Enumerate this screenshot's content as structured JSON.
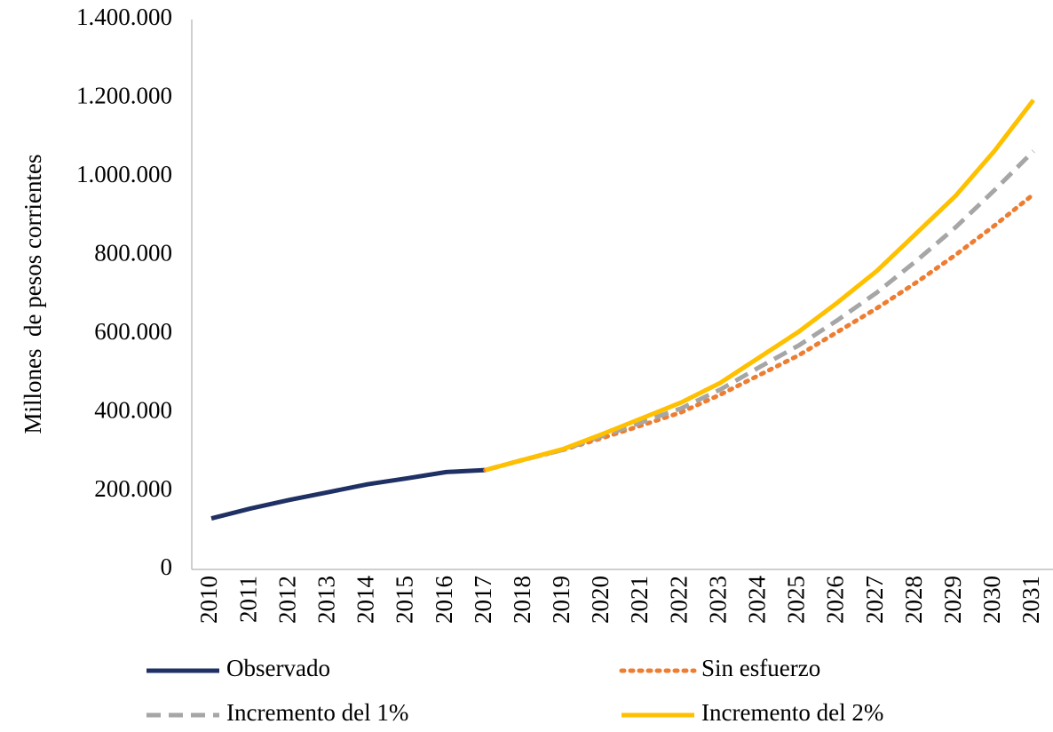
{
  "chart_data": {
    "type": "line",
    "y_axis_label": "Millones  de pesos corrientes",
    "categories": [
      "2010",
      "2011",
      "2012",
      "2013",
      "2014",
      "2015",
      "2016",
      "2017",
      "2018",
      "2019",
      "2020",
      "2021",
      "2022",
      "2023",
      "2024",
      "2025",
      "2026",
      "2027",
      "2028",
      "2029",
      "2030",
      "2031"
    ],
    "series": [
      {
        "name": "Observado",
        "color": "#1f3064",
        "line_style": "solid",
        "values": [
          130000,
          155000,
          177000,
          197000,
          217000,
          232000,
          248000,
          253000,
          null,
          null,
          null,
          null,
          null,
          null,
          null,
          null,
          null,
          null,
          null,
          null,
          null,
          null
        ]
      },
      {
        "name": "Sin esfuerzo",
        "color": "#ed7d31",
        "line_style": "dotted",
        "values": [
          null,
          null,
          null,
          null,
          null,
          null,
          null,
          253000,
          280000,
          305000,
          335000,
          367000,
          400000,
          445000,
          495000,
          545000,
          605000,
          665000,
          730000,
          800000,
          875000,
          955000
        ]
      },
      {
        "name": "Incremento del 1%",
        "color": "#a6a6a6",
        "line_style": "dashed",
        "values": [
          null,
          null,
          null,
          null,
          null,
          null,
          null,
          253000,
          280000,
          305000,
          340000,
          375000,
          410000,
          458000,
          515000,
          570000,
          635000,
          705000,
          785000,
          870000,
          965000,
          1065000
        ]
      },
      {
        "name": "Incremento del 2%",
        "color": "#ffc000",
        "line_style": "solid",
        "values": [
          null,
          null,
          null,
          null,
          null,
          null,
          null,
          253000,
          280000,
          307000,
          345000,
          385000,
          425000,
          475000,
          540000,
          605000,
          680000,
          760000,
          855000,
          950000,
          1065000,
          1195000
        ]
      }
    ],
    "ylim": [
      0,
      1400000
    ],
    "yticks": [
      0,
      {
        "value": 200000,
        "label": "200.000"
      },
      {
        "value": 400000,
        "label": "400.000"
      },
      {
        "value": 600000,
        "label": "600.000"
      },
      {
        "value": 800000,
        "label": "800.000"
      },
      {
        "value": 1000000,
        "label": "1.000.000"
      },
      {
        "value": 1200000,
        "label": "1.200.000"
      },
      {
        "value": 1400000,
        "label": "1.400.000"
      }
    ],
    "grid": false
  }
}
